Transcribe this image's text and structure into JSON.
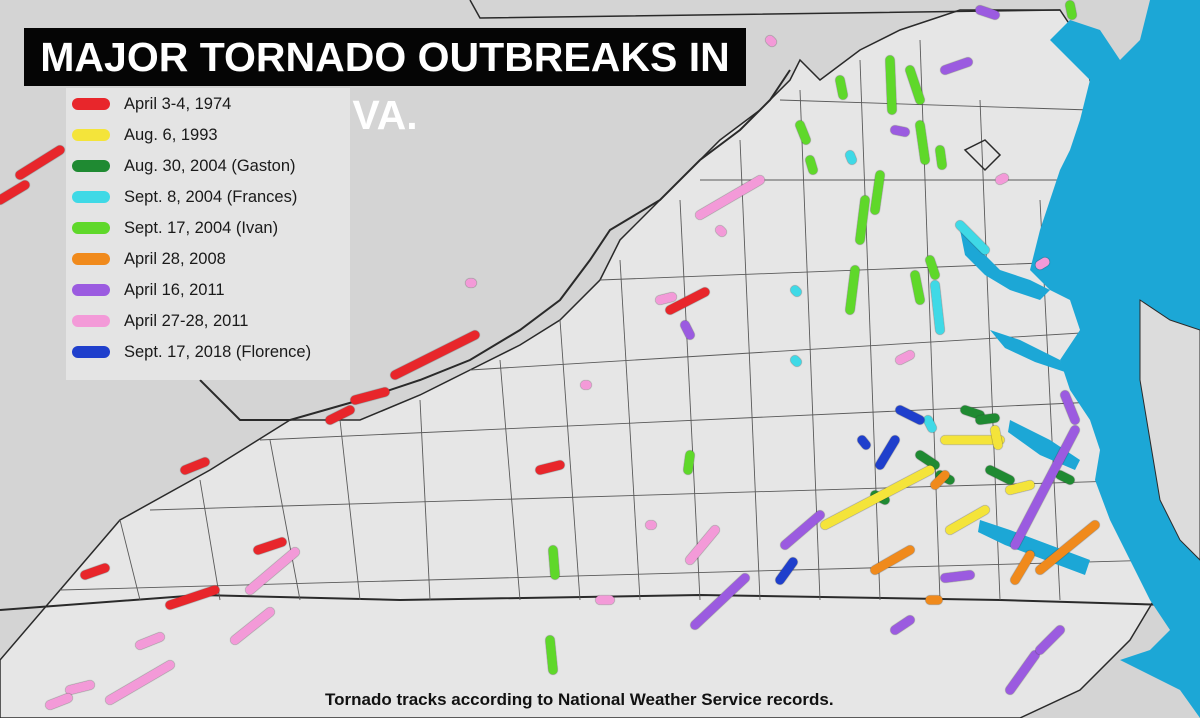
{
  "title": "MAJOR TORNADO OUTBREAKS IN VA.",
  "source_note": "Tornado tracks according to National Weather Service records.",
  "colors": {
    "land": "#d9d9d9",
    "virginia": "#e8e8e8",
    "water": "#1ca7d6",
    "border": "#2a2a2a",
    "county": "#555555"
  },
  "legend": [
    {
      "id": "1974",
      "label": "April 3-4, 1974",
      "color": "#e8262b"
    },
    {
      "id": "1993",
      "label": "Aug. 6, 1993",
      "color": "#f4e43a"
    },
    {
      "id": "gaston",
      "label": "Aug. 30, 2004 (Gaston)",
      "color": "#1f8a32"
    },
    {
      "id": "frances",
      "label": "Sept. 8, 2004 (Frances)",
      "color": "#3fd9e6"
    },
    {
      "id": "ivan",
      "label": "Sept. 17, 2004 (Ivan)",
      "color": "#5fd82a"
    },
    {
      "id": "2008",
      "label": "April 28, 2008",
      "color": "#f08a1c"
    },
    {
      "id": "apr2011",
      "label": "April 16, 2011",
      "color": "#9b5be0"
    },
    {
      "id": "apr27",
      "label": "April 27-28, 2011",
      "color": "#f39ad8"
    },
    {
      "id": "florence",
      "label": "Sept. 17, 2018 (Florence)",
      "color": "#1f3fcc"
    }
  ]
}
